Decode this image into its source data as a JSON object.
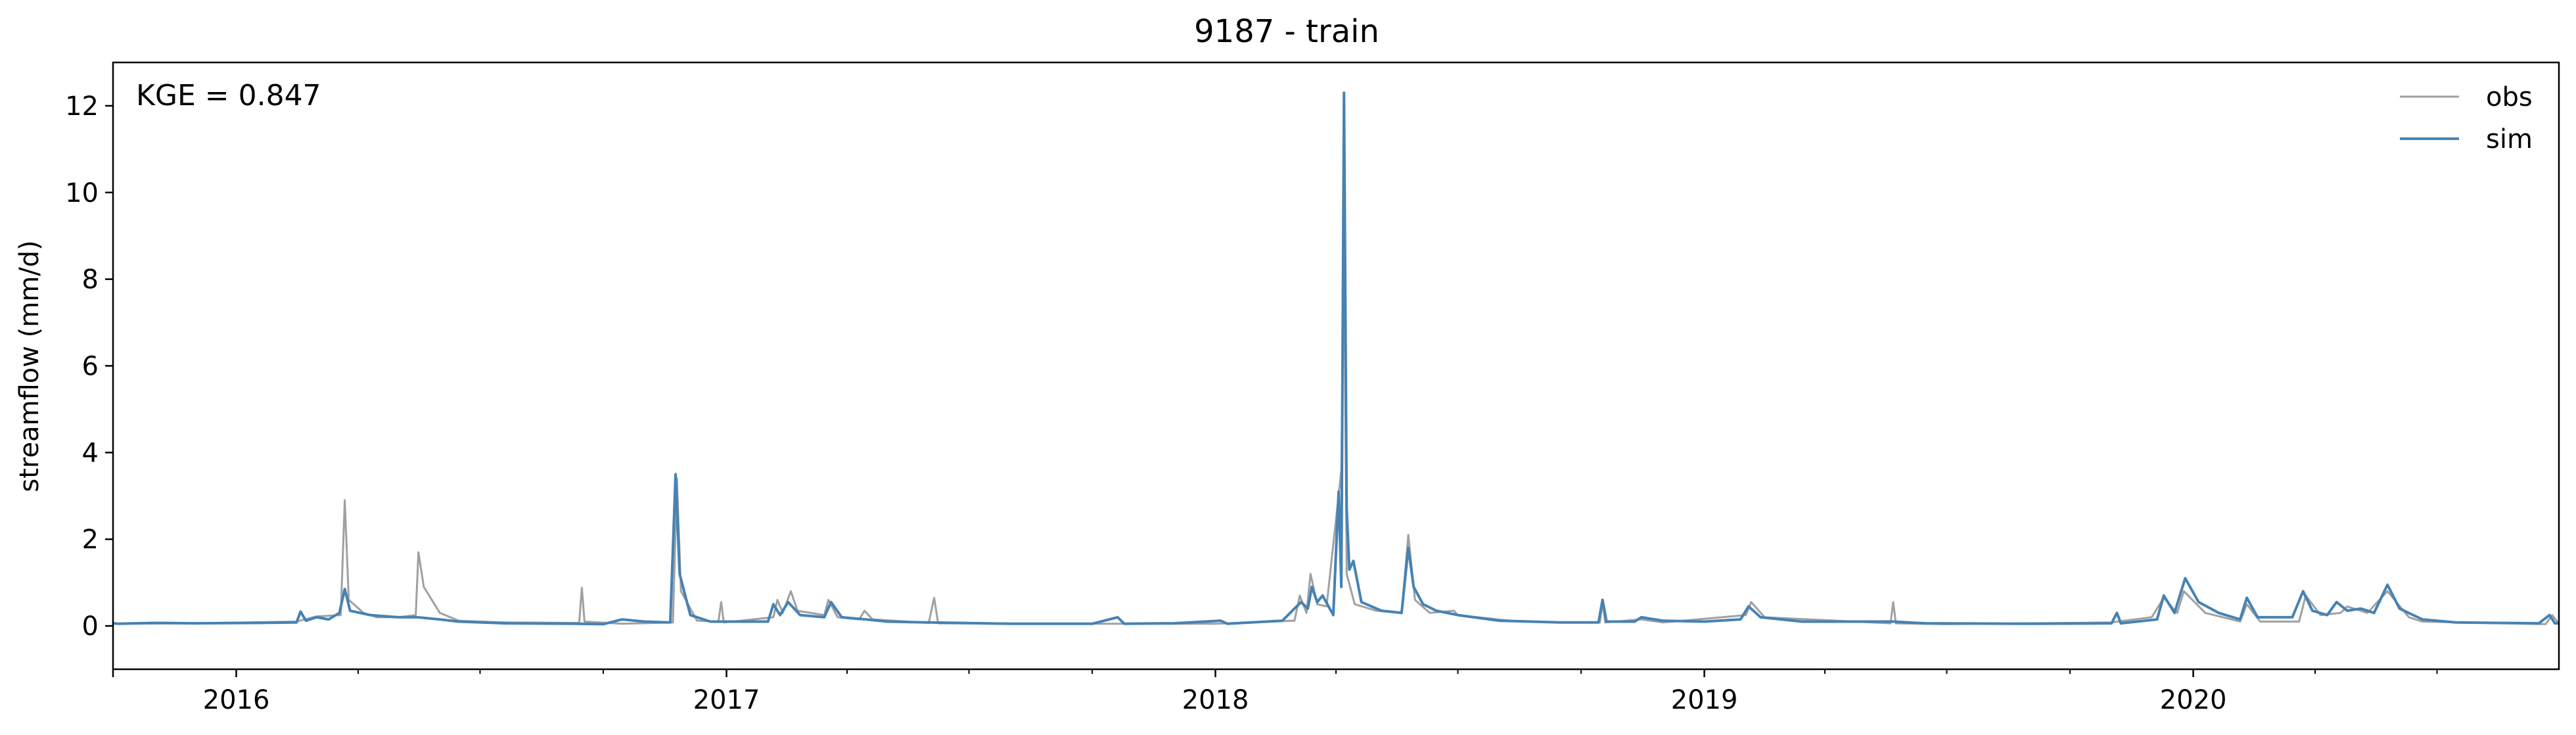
{
  "chart_data": {
    "type": "line",
    "title": "9187 - train",
    "xlabel": "",
    "ylabel": "streamflow (mm/d)",
    "annotation": "KGE = 0.847",
    "legend_position": "top-right",
    "grid": false,
    "xlim": [
      "2015-10-01",
      "2020-09-30"
    ],
    "ylim": [
      -1,
      13
    ],
    "x_major_ticks": [
      {
        "label": "2016",
        "date": "2016-01-01"
      },
      {
        "label": "2017",
        "date": "2017-01-01"
      },
      {
        "label": "2018",
        "date": "2018-01-01"
      },
      {
        "label": "2019",
        "date": "2019-01-01"
      },
      {
        "label": "2020",
        "date": "2020-01-01"
      }
    ],
    "y_ticks": [
      0,
      2,
      4,
      6,
      8,
      10,
      12
    ],
    "series": [
      {
        "name": "obs",
        "color": "#a0a0a0",
        "points": [
          [
            "2015-10-01",
            0.05
          ],
          [
            "2015-12-01",
            0.06
          ],
          [
            "2016-02-15",
            0.1
          ],
          [
            "2016-03-01",
            0.22
          ],
          [
            "2016-03-19",
            0.25
          ],
          [
            "2016-03-22",
            2.9
          ],
          [
            "2016-03-25",
            0.6
          ],
          [
            "2016-04-05",
            0.3
          ],
          [
            "2016-04-15",
            0.2
          ],
          [
            "2016-05-01",
            0.2
          ],
          [
            "2016-05-14",
            0.25
          ],
          [
            "2016-05-16",
            1.7
          ],
          [
            "2016-05-20",
            0.9
          ],
          [
            "2016-06-01",
            0.3
          ],
          [
            "2016-06-15",
            0.12
          ],
          [
            "2016-07-20",
            0.08
          ],
          [
            "2016-09-13",
            0.07
          ],
          [
            "2016-09-15",
            0.88
          ],
          [
            "2016-09-17",
            0.1
          ],
          [
            "2016-10-15",
            0.05
          ],
          [
            "2016-11-22",
            0.08
          ],
          [
            "2016-11-25",
            3.4
          ],
          [
            "2016-11-28",
            0.8
          ],
          [
            "2016-12-10",
            0.12
          ],
          [
            "2016-12-26",
            0.1
          ],
          [
            "2016-12-28",
            0.55
          ],
          [
            "2016-12-30",
            0.08
          ],
          [
            "2017-02-05",
            0.2
          ],
          [
            "2017-02-08",
            0.6
          ],
          [
            "2017-02-12",
            0.3
          ],
          [
            "2017-02-18",
            0.8
          ],
          [
            "2017-02-23",
            0.35
          ],
          [
            "2017-03-15",
            0.25
          ],
          [
            "2017-03-18",
            0.6
          ],
          [
            "2017-03-25",
            0.2
          ],
          [
            "2017-04-10",
            0.15
          ],
          [
            "2017-04-14",
            0.35
          ],
          [
            "2017-04-20",
            0.15
          ],
          [
            "2017-06-01",
            0.07
          ],
          [
            "2017-06-05",
            0.65
          ],
          [
            "2017-06-08",
            0.06
          ],
          [
            "2017-09-01",
            0.05
          ],
          [
            "2018-01-01",
            0.05
          ],
          [
            "2018-03-01",
            0.12
          ],
          [
            "2018-03-05",
            0.7
          ],
          [
            "2018-03-10",
            0.3
          ],
          [
            "2018-03-13",
            1.2
          ],
          [
            "2018-03-18",
            0.5
          ],
          [
            "2018-03-25",
            0.45
          ],
          [
            "2018-04-05",
            3.6
          ],
          [
            "2018-04-07",
            9.0
          ],
          [
            "2018-04-09",
            1.2
          ],
          [
            "2018-04-15",
            0.5
          ],
          [
            "2018-05-01",
            0.35
          ],
          [
            "2018-05-20",
            0.3
          ],
          [
            "2018-05-25",
            2.1
          ],
          [
            "2018-05-30",
            0.6
          ],
          [
            "2018-06-10",
            0.3
          ],
          [
            "2018-06-28",
            0.35
          ],
          [
            "2018-07-01",
            0.25
          ],
          [
            "2018-08-15",
            0.1
          ],
          [
            "2018-10-01",
            0.08
          ],
          [
            "2018-10-15",
            0.08
          ],
          [
            "2018-10-17",
            0.55
          ],
          [
            "2018-10-19",
            0.08
          ],
          [
            "2018-11-15",
            0.15
          ],
          [
            "2018-12-01",
            0.08
          ],
          [
            "2019-02-01",
            0.25
          ],
          [
            "2019-02-05",
            0.55
          ],
          [
            "2019-02-15",
            0.2
          ],
          [
            "2019-05-20",
            0.06
          ],
          [
            "2019-05-22",
            0.55
          ],
          [
            "2019-05-24",
            0.06
          ],
          [
            "2019-07-01",
            0.04
          ],
          [
            "2019-11-01",
            0.08
          ],
          [
            "2019-12-01",
            0.2
          ],
          [
            "2019-12-10",
            0.65
          ],
          [
            "2019-12-20",
            0.3
          ],
          [
            "2019-12-25",
            0.8
          ],
          [
            "2020-01-10",
            0.3
          ],
          [
            "2020-02-05",
            0.1
          ],
          [
            "2020-02-10",
            0.5
          ],
          [
            "2020-02-20",
            0.1
          ],
          [
            "2020-03-20",
            0.1
          ],
          [
            "2020-03-25",
            0.7
          ],
          [
            "2020-04-05",
            0.25
          ],
          [
            "2020-04-20",
            0.3
          ],
          [
            "2020-04-25",
            0.45
          ],
          [
            "2020-05-10",
            0.3
          ],
          [
            "2020-05-25",
            0.8
          ],
          [
            "2020-06-10",
            0.2
          ],
          [
            "2020-06-20",
            0.1
          ],
          [
            "2020-09-20",
            0.04
          ],
          [
            "2020-09-25",
            0.25
          ],
          [
            "2020-09-30",
            0.05
          ]
        ]
      },
      {
        "name": "sim",
        "color": "#4682b4",
        "points": [
          [
            "2015-10-01",
            0.06
          ],
          [
            "2015-10-05",
            0.05
          ],
          [
            "2015-11-01",
            0.07
          ],
          [
            "2015-12-01",
            0.06
          ],
          [
            "2016-01-15",
            0.07
          ],
          [
            "2016-02-15",
            0.08
          ],
          [
            "2016-02-18",
            0.33
          ],
          [
            "2016-02-22",
            0.12
          ],
          [
            "2016-03-01",
            0.2
          ],
          [
            "2016-03-10",
            0.15
          ],
          [
            "2016-03-18",
            0.3
          ],
          [
            "2016-03-22",
            0.85
          ],
          [
            "2016-03-26",
            0.35
          ],
          [
            "2016-04-10",
            0.25
          ],
          [
            "2016-05-01",
            0.2
          ],
          [
            "2016-05-15",
            0.2
          ],
          [
            "2016-06-01",
            0.15
          ],
          [
            "2016-06-15",
            0.1
          ],
          [
            "2016-07-20",
            0.06
          ],
          [
            "2016-09-10",
            0.05
          ],
          [
            "2016-10-01",
            0.04
          ],
          [
            "2016-10-15",
            0.15
          ],
          [
            "2016-11-01",
            0.1
          ],
          [
            "2016-11-20",
            0.08
          ],
          [
            "2016-11-24",
            3.5
          ],
          [
            "2016-11-27",
            1.2
          ],
          [
            "2016-12-05",
            0.25
          ],
          [
            "2016-12-20",
            0.1
          ],
          [
            "2017-01-10",
            0.1
          ],
          [
            "2017-02-01",
            0.1
          ],
          [
            "2017-02-05",
            0.5
          ],
          [
            "2017-02-10",
            0.25
          ],
          [
            "2017-02-16",
            0.55
          ],
          [
            "2017-02-25",
            0.25
          ],
          [
            "2017-03-15",
            0.2
          ],
          [
            "2017-03-20",
            0.55
          ],
          [
            "2017-03-28",
            0.2
          ],
          [
            "2017-04-15",
            0.15
          ],
          [
            "2017-05-01",
            0.1
          ],
          [
            "2017-06-01",
            0.08
          ],
          [
            "2017-08-01",
            0.05
          ],
          [
            "2017-10-01",
            0.05
          ],
          [
            "2017-10-20",
            0.2
          ],
          [
            "2017-10-25",
            0.05
          ],
          [
            "2017-12-01",
            0.06
          ],
          [
            "2018-01-05",
            0.12
          ],
          [
            "2018-01-10",
            0.05
          ],
          [
            "2018-02-20",
            0.12
          ],
          [
            "2018-03-01",
            0.4
          ],
          [
            "2018-03-06",
            0.55
          ],
          [
            "2018-03-11",
            0.4
          ],
          [
            "2018-03-14",
            0.9
          ],
          [
            "2018-03-18",
            0.55
          ],
          [
            "2018-03-22",
            0.7
          ],
          [
            "2018-03-30",
            0.25
          ],
          [
            "2018-04-03",
            3.1
          ],
          [
            "2018-04-05",
            0.9
          ],
          [
            "2018-04-07",
            12.3
          ],
          [
            "2018-04-09",
            2.7
          ],
          [
            "2018-04-11",
            1.3
          ],
          [
            "2018-04-14",
            1.5
          ],
          [
            "2018-04-20",
            0.55
          ],
          [
            "2018-05-05",
            0.35
          ],
          [
            "2018-05-20",
            0.3
          ],
          [
            "2018-05-25",
            1.8
          ],
          [
            "2018-05-29",
            0.9
          ],
          [
            "2018-06-05",
            0.5
          ],
          [
            "2018-06-15",
            0.35
          ],
          [
            "2018-07-01",
            0.25
          ],
          [
            "2018-08-01",
            0.12
          ],
          [
            "2018-09-15",
            0.08
          ],
          [
            "2018-10-14",
            0.08
          ],
          [
            "2018-10-17",
            0.6
          ],
          [
            "2018-10-20",
            0.1
          ],
          [
            "2018-11-10",
            0.1
          ],
          [
            "2018-11-15",
            0.2
          ],
          [
            "2018-12-01",
            0.12
          ],
          [
            "2019-01-01",
            0.1
          ],
          [
            "2019-01-28",
            0.15
          ],
          [
            "2019-02-03",
            0.45
          ],
          [
            "2019-02-12",
            0.2
          ],
          [
            "2019-03-15",
            0.1
          ],
          [
            "2019-05-22",
            0.1
          ],
          [
            "2019-06-15",
            0.06
          ],
          [
            "2019-09-01",
            0.05
          ],
          [
            "2019-11-01",
            0.06
          ],
          [
            "2019-11-05",
            0.3
          ],
          [
            "2019-11-08",
            0.06
          ],
          [
            "2019-12-05",
            0.15
          ],
          [
            "2019-12-10",
            0.7
          ],
          [
            "2019-12-18",
            0.3
          ],
          [
            "2019-12-26",
            1.1
          ],
          [
            "2020-01-05",
            0.55
          ],
          [
            "2020-01-20",
            0.3
          ],
          [
            "2020-02-05",
            0.15
          ],
          [
            "2020-02-10",
            0.65
          ],
          [
            "2020-02-18",
            0.2
          ],
          [
            "2020-03-15",
            0.2
          ],
          [
            "2020-03-23",
            0.8
          ],
          [
            "2020-03-30",
            0.35
          ],
          [
            "2020-04-10",
            0.25
          ],
          [
            "2020-04-17",
            0.55
          ],
          [
            "2020-04-25",
            0.35
          ],
          [
            "2020-05-05",
            0.4
          ],
          [
            "2020-05-15",
            0.3
          ],
          [
            "2020-05-25",
            0.95
          ],
          [
            "2020-06-03",
            0.4
          ],
          [
            "2020-06-20",
            0.15
          ],
          [
            "2020-07-15",
            0.08
          ],
          [
            "2020-09-15",
            0.06
          ],
          [
            "2020-09-23",
            0.25
          ],
          [
            "2020-09-27",
            0.06
          ],
          [
            "2020-09-30",
            0.06
          ]
        ]
      }
    ]
  }
}
